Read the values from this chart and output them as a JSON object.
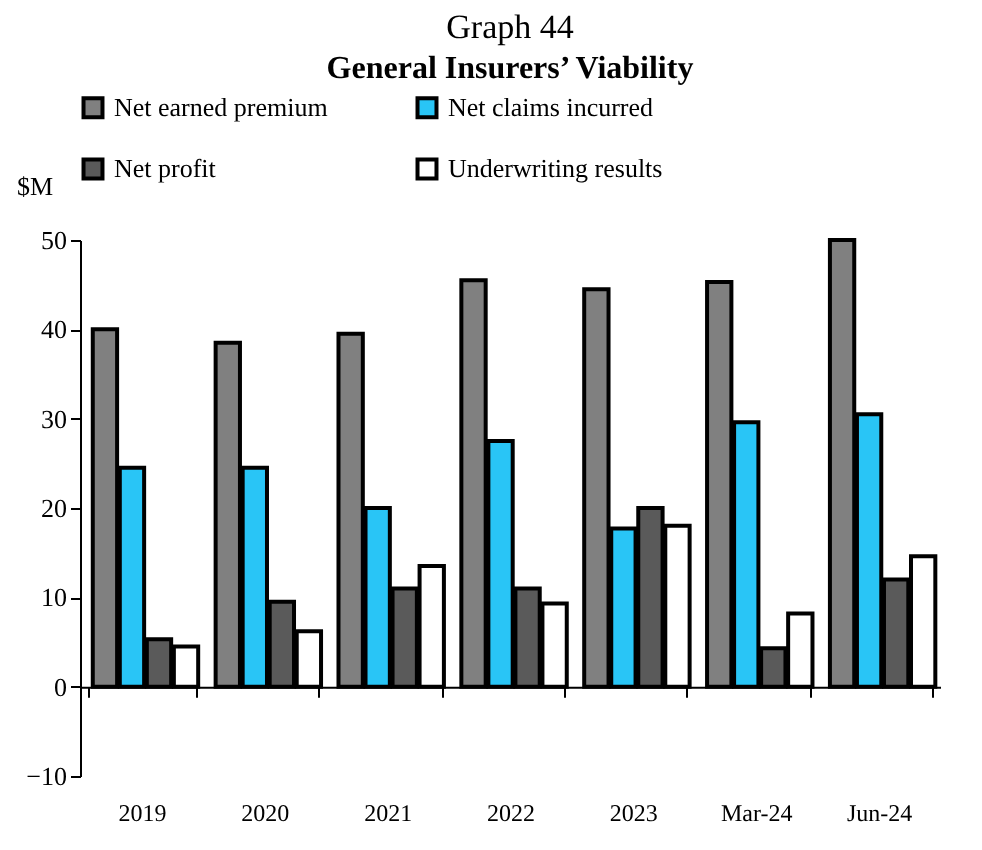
{
  "chart_data": {
    "type": "bar",
    "title": "Graph 44",
    "subtitle": "General  Insurers’ Viability",
    "ylabel": "$M",
    "categories": [
      "2019",
      "2020",
      "2021",
      "2022",
      "2023",
      "Mar-24",
      "Jun-24"
    ],
    "series": [
      {
        "name": "Net earned premium",
        "color": "#808080",
        "values": [
          40,
          38.5,
          39.5,
          45.5,
          44.5,
          45.3,
          50
        ]
      },
      {
        "name": "Net claims incurred",
        "color": "#29c5f6",
        "values": [
          24.5,
          24.5,
          20,
          27.5,
          17.7,
          29.6,
          30.5
        ]
      },
      {
        "name": "Net profit",
        "color": "#5a5a5a",
        "values": [
          5.3,
          9.5,
          11,
          11,
          20,
          4.3,
          12
        ]
      },
      {
        "name": "Underwriting results",
        "color": "#ffffff",
        "values": [
          4.5,
          6.2,
          13.5,
          9.3,
          18,
          8.2,
          14.6
        ]
      }
    ],
    "ylim": [
      -10,
      50
    ],
    "yticks": [
      -10,
      0,
      10,
      20,
      30,
      40,
      50
    ],
    "legend": "top"
  }
}
